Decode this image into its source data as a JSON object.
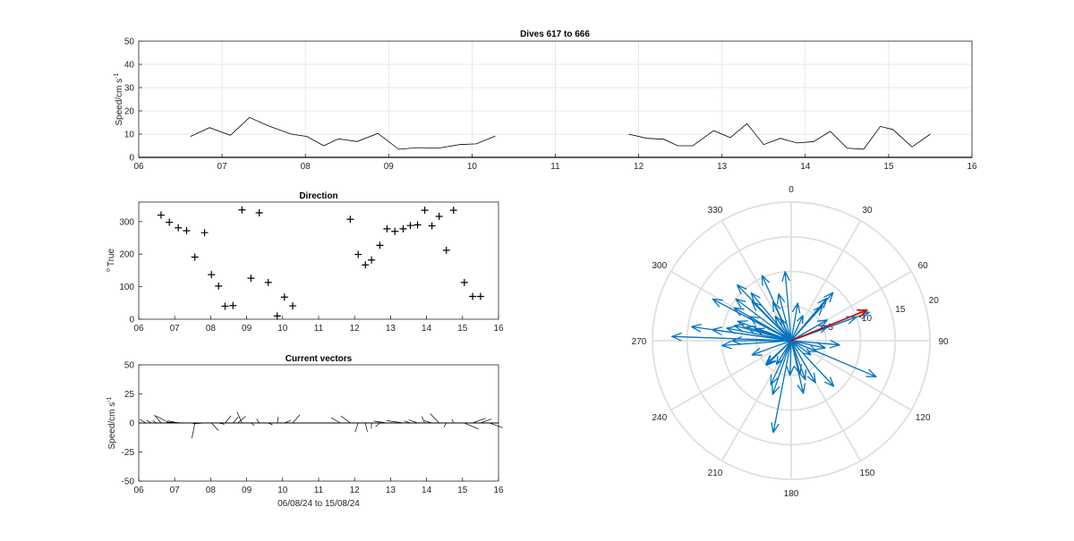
{
  "figure": {
    "colors": {
      "axis": "#262626",
      "grid": "#dfdfdf",
      "line": "#000000",
      "rose": "#0072bd",
      "mean": "#d00000"
    }
  },
  "chart_data": [
    {
      "type": "line",
      "title": "Dives 617 to 666",
      "xlabel": "",
      "ylabel": "Speed/cm s",
      "ylabel_superscript": "-1",
      "xlim": [
        6,
        16
      ],
      "ylim": [
        0,
        50
      ],
      "xticks": [
        "06",
        "07",
        "08",
        "09",
        "10",
        "11",
        "12",
        "13",
        "14",
        "15",
        "16"
      ],
      "yticks": [
        "0",
        "10",
        "20",
        "30",
        "40",
        "50"
      ],
      "grid": true,
      "segments": [
        {
          "x": [
            6.62,
            6.85,
            7.1,
            7.33,
            7.56,
            7.83,
            8.02,
            8.22,
            8.4,
            8.62,
            8.87,
            9.12,
            9.35,
            9.6,
            9.85,
            10.05,
            10.28
          ],
          "y": [
            9,
            12.8,
            9.5,
            17.2,
            13.5,
            10,
            9,
            5,
            8,
            6.8,
            10.3,
            3.5,
            4.2,
            4,
            5.5,
            5.8,
            9.2
          ]
        },
        {
          "x": [
            11.88,
            12.1,
            12.3,
            12.47,
            12.65,
            12.9,
            13.1,
            13.3,
            13.5,
            13.7,
            13.9,
            14.1,
            14.3,
            14.5,
            14.7,
            14.9,
            15.05,
            15.28,
            15.5
          ],
          "y": [
            10,
            8.2,
            7.8,
            5,
            5,
            11.5,
            8.5,
            14.5,
            5.5,
            8.2,
            6.2,
            6.8,
            11.2,
            4,
            3.5,
            13.3,
            12,
            4.5,
            10
          ]
        }
      ]
    },
    {
      "type": "scatter",
      "title": "Direction",
      "xlabel": "",
      "ylabel": "True",
      "ylabel_prefix": "o",
      "xlim": [
        6,
        16
      ],
      "ylim": [
        0,
        360
      ],
      "xticks": [
        "06",
        "07",
        "08",
        "09",
        "10",
        "11",
        "12",
        "13",
        "14",
        "15",
        "16"
      ],
      "yticks": [
        "0",
        "100",
        "200",
        "300"
      ],
      "grid": false,
      "marker": "+",
      "x": [
        6.62,
        6.85,
        7.1,
        7.33,
        7.56,
        7.83,
        8.02,
        8.22,
        8.4,
        8.62,
        8.87,
        9.12,
        9.35,
        9.6,
        9.85,
        10.05,
        10.28,
        11.88,
        12.1,
        12.3,
        12.47,
        12.7,
        12.9,
        13.12,
        13.35,
        13.55,
        13.75,
        13.95,
        14.15,
        14.35,
        14.55,
        14.75,
        15.05,
        15.28,
        15.5
      ],
      "y": [
        320,
        298,
        281,
        272,
        191,
        266,
        137,
        102,
        40,
        42,
        336,
        126,
        327,
        113,
        10,
        68,
        41,
        307,
        199,
        167,
        182,
        227,
        278,
        270,
        278,
        288,
        290,
        335,
        287,
        316,
        212,
        335,
        113,
        70,
        70
      ]
    },
    {
      "type": "line",
      "title": "Current vectors",
      "subtype": "stick",
      "xlabel": "06/08/24 to 15/08/24",
      "ylabel": "Speed/cm s",
      "ylabel_superscript": "-1",
      "xlim": [
        6,
        16
      ],
      "ylim": [
        -50,
        50
      ],
      "xticks": [
        "06",
        "07",
        "08",
        "09",
        "10",
        "11",
        "12",
        "13",
        "14",
        "15",
        "16"
      ],
      "yticks": [
        "-50",
        "-25",
        "0",
        "25",
        "50"
      ],
      "grid": false,
      "x": [
        6.2,
        6.35,
        6.5,
        6.62,
        6.85,
        7.1,
        7.33,
        7.56,
        7.83,
        8.02,
        8.22,
        8.4,
        8.62,
        8.75,
        8.87,
        9.12,
        9.35,
        9.6,
        9.85,
        10.05,
        10.28,
        11.6,
        11.88,
        12.1,
        12.3,
        12.47,
        12.7,
        12.9,
        13.12,
        13.35,
        13.55,
        13.75,
        13.95,
        14.15,
        14.35,
        14.55,
        14.75,
        15.05,
        15.28,
        15.5,
        15.75
      ],
      "speed": [
        6,
        5,
        4,
        9,
        12.8,
        9.5,
        17.2,
        13.5,
        10,
        9,
        5,
        8,
        6.8,
        9,
        10.3,
        3.5,
        4.2,
        4,
        5.5,
        5.8,
        9.2,
        9,
        10,
        8.2,
        7.8,
        5,
        5,
        11.5,
        8.5,
        14.5,
        5.5,
        8.2,
        6.2,
        6.8,
        11.2,
        4,
        3.5,
        13.3,
        12,
        10,
        12
      ],
      "direction": [
        300,
        300,
        300,
        320,
        298,
        281,
        272,
        191,
        266,
        137,
        102,
        40,
        42,
        50,
        336,
        126,
        327,
        113,
        10,
        68,
        41,
        300,
        307,
        199,
        167,
        182,
        227,
        278,
        270,
        278,
        288,
        290,
        335,
        287,
        316,
        212,
        335,
        113,
        70,
        70,
        110
      ]
    },
    {
      "type": "scatter",
      "subtype": "polar-compass",
      "title": "",
      "angle_labels": [
        "0",
        "30",
        "60",
        "90",
        "120",
        "150",
        "180",
        "210",
        "240",
        "270",
        "300",
        "330"
      ],
      "radial_labels": [
        "5",
        "10",
        "15",
        "20"
      ],
      "rlim": [
        0,
        20
      ],
      "directions": [
        320,
        298,
        281,
        272,
        191,
        266,
        137,
        102,
        40,
        42,
        336,
        126,
        327,
        113,
        10,
        68,
        41,
        307,
        199,
        167,
        182,
        227,
        278,
        270,
        278,
        288,
        290,
        335,
        287,
        316,
        212,
        335,
        113,
        70,
        70,
        300,
        355,
        25,
        150,
        160,
        205,
        225,
        250,
        285,
        300,
        315,
        345,
        60,
        95,
        165
      ],
      "speeds": [
        9,
        12.8,
        9.5,
        17.2,
        13.5,
        10,
        9,
        5,
        8,
        6.8,
        10.3,
        3.5,
        4.2,
        4,
        5.5,
        5.8,
        9.2,
        10,
        8.2,
        7.8,
        5,
        5,
        11.5,
        8.5,
        14.5,
        5.5,
        8.2,
        6.2,
        6.8,
        11.2,
        4,
        3.5,
        13.3,
        12,
        10,
        9.5,
        10,
        4,
        7,
        6,
        7,
        5,
        6,
        8.5,
        7,
        8,
        7,
        6,
        7,
        5
      ],
      "mean_vector": {
        "direction": 68,
        "speed": 11.8
      }
    }
  ]
}
